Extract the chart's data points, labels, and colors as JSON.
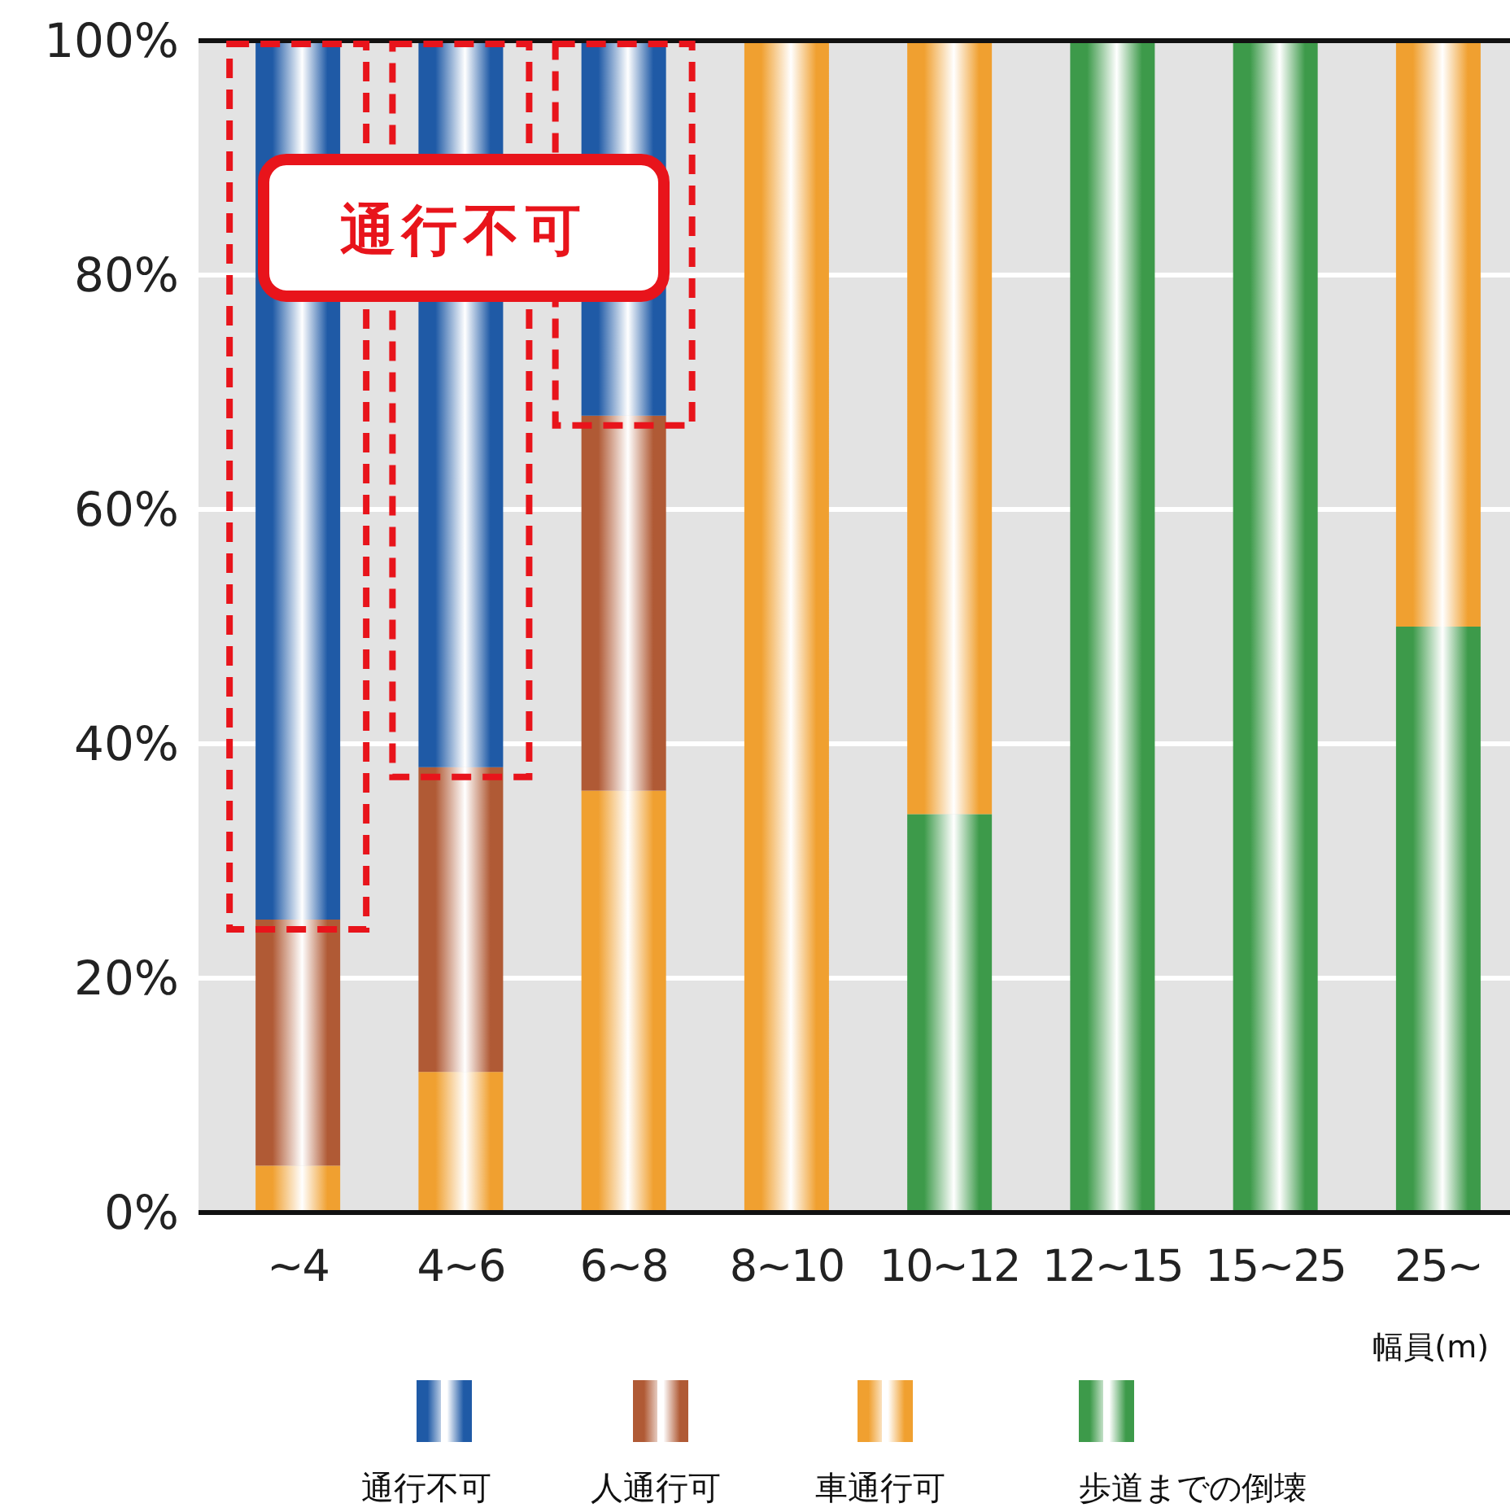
{
  "chart_data": {
    "type": "bar",
    "stacked": true,
    "categories": [
      "~4",
      "4~6",
      "6~8",
      "8~10",
      "10~12",
      "12~15",
      "15~25",
      "25~"
    ],
    "series": [
      {
        "name": "歩道までの倒壊",
        "color": "#3d9a4a",
        "values": [
          0,
          0,
          0,
          0,
          34,
          100,
          100,
          50
        ]
      },
      {
        "name": "車通行可",
        "color": "#f0a030",
        "values": [
          4,
          12,
          36,
          100,
          66,
          0,
          0,
          50
        ]
      },
      {
        "name": "人通行可",
        "color": "#b05a35",
        "values": [
          21,
          26,
          32,
          0,
          0,
          0,
          0,
          0
        ]
      },
      {
        "name": "通行不可",
        "color": "#1f5aa6",
        "values": [
          75,
          62,
          32,
          0,
          0,
          0,
          0,
          0
        ]
      }
    ],
    "ylim": [
      0,
      100
    ],
    "yticks": [
      {
        "value": 0,
        "label": "0%"
      },
      {
        "value": 20,
        "label": "20%"
      },
      {
        "value": 40,
        "label": "40%"
      },
      {
        "value": 60,
        "label": "60%"
      },
      {
        "value": 80,
        "label": "80%"
      },
      {
        "value": 100,
        "label": "100%"
      }
    ],
    "grid": "y",
    "legend": "bottom",
    "xlabel": "幅員(m)",
    "annotations": [
      "通行不可"
    ]
  }
}
